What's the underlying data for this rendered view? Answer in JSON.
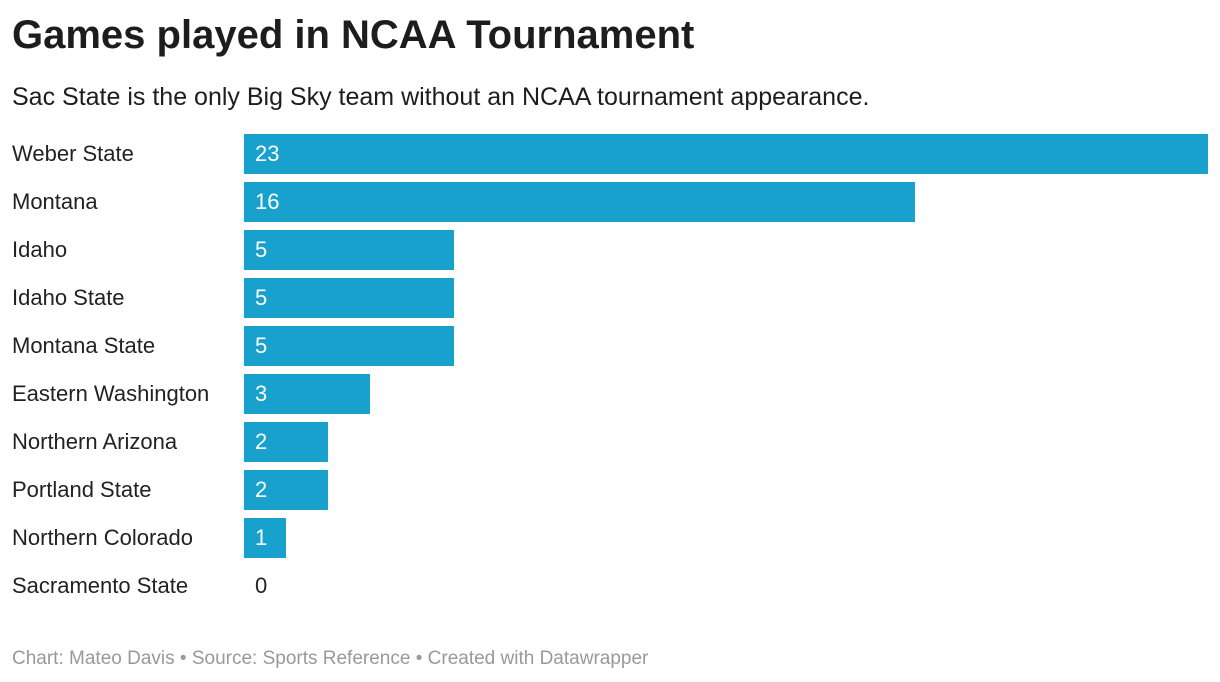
{
  "chart_data": {
    "type": "bar",
    "orientation": "horizontal",
    "title": "Games played in NCAA Tournament",
    "subtitle": "Sac State is the only Big Sky team without an NCAA tournament appearance.",
    "categories": [
      "Weber State",
      "Montana",
      "Idaho",
      "Idaho State",
      "Montana State",
      "Eastern Washington",
      "Northern Arizona",
      "Portland State",
      "Northern Colorado",
      "Sacramento State"
    ],
    "values": [
      23,
      16,
      5,
      5,
      5,
      3,
      2,
      2,
      1,
      0
    ],
    "xlim": [
      0,
      23
    ],
    "grid": false,
    "bar_color": "#18a1cd"
  },
  "footer": {
    "credit": "Chart: Mateo Davis • Source: Sports Reference • Created with Datawrapper"
  }
}
